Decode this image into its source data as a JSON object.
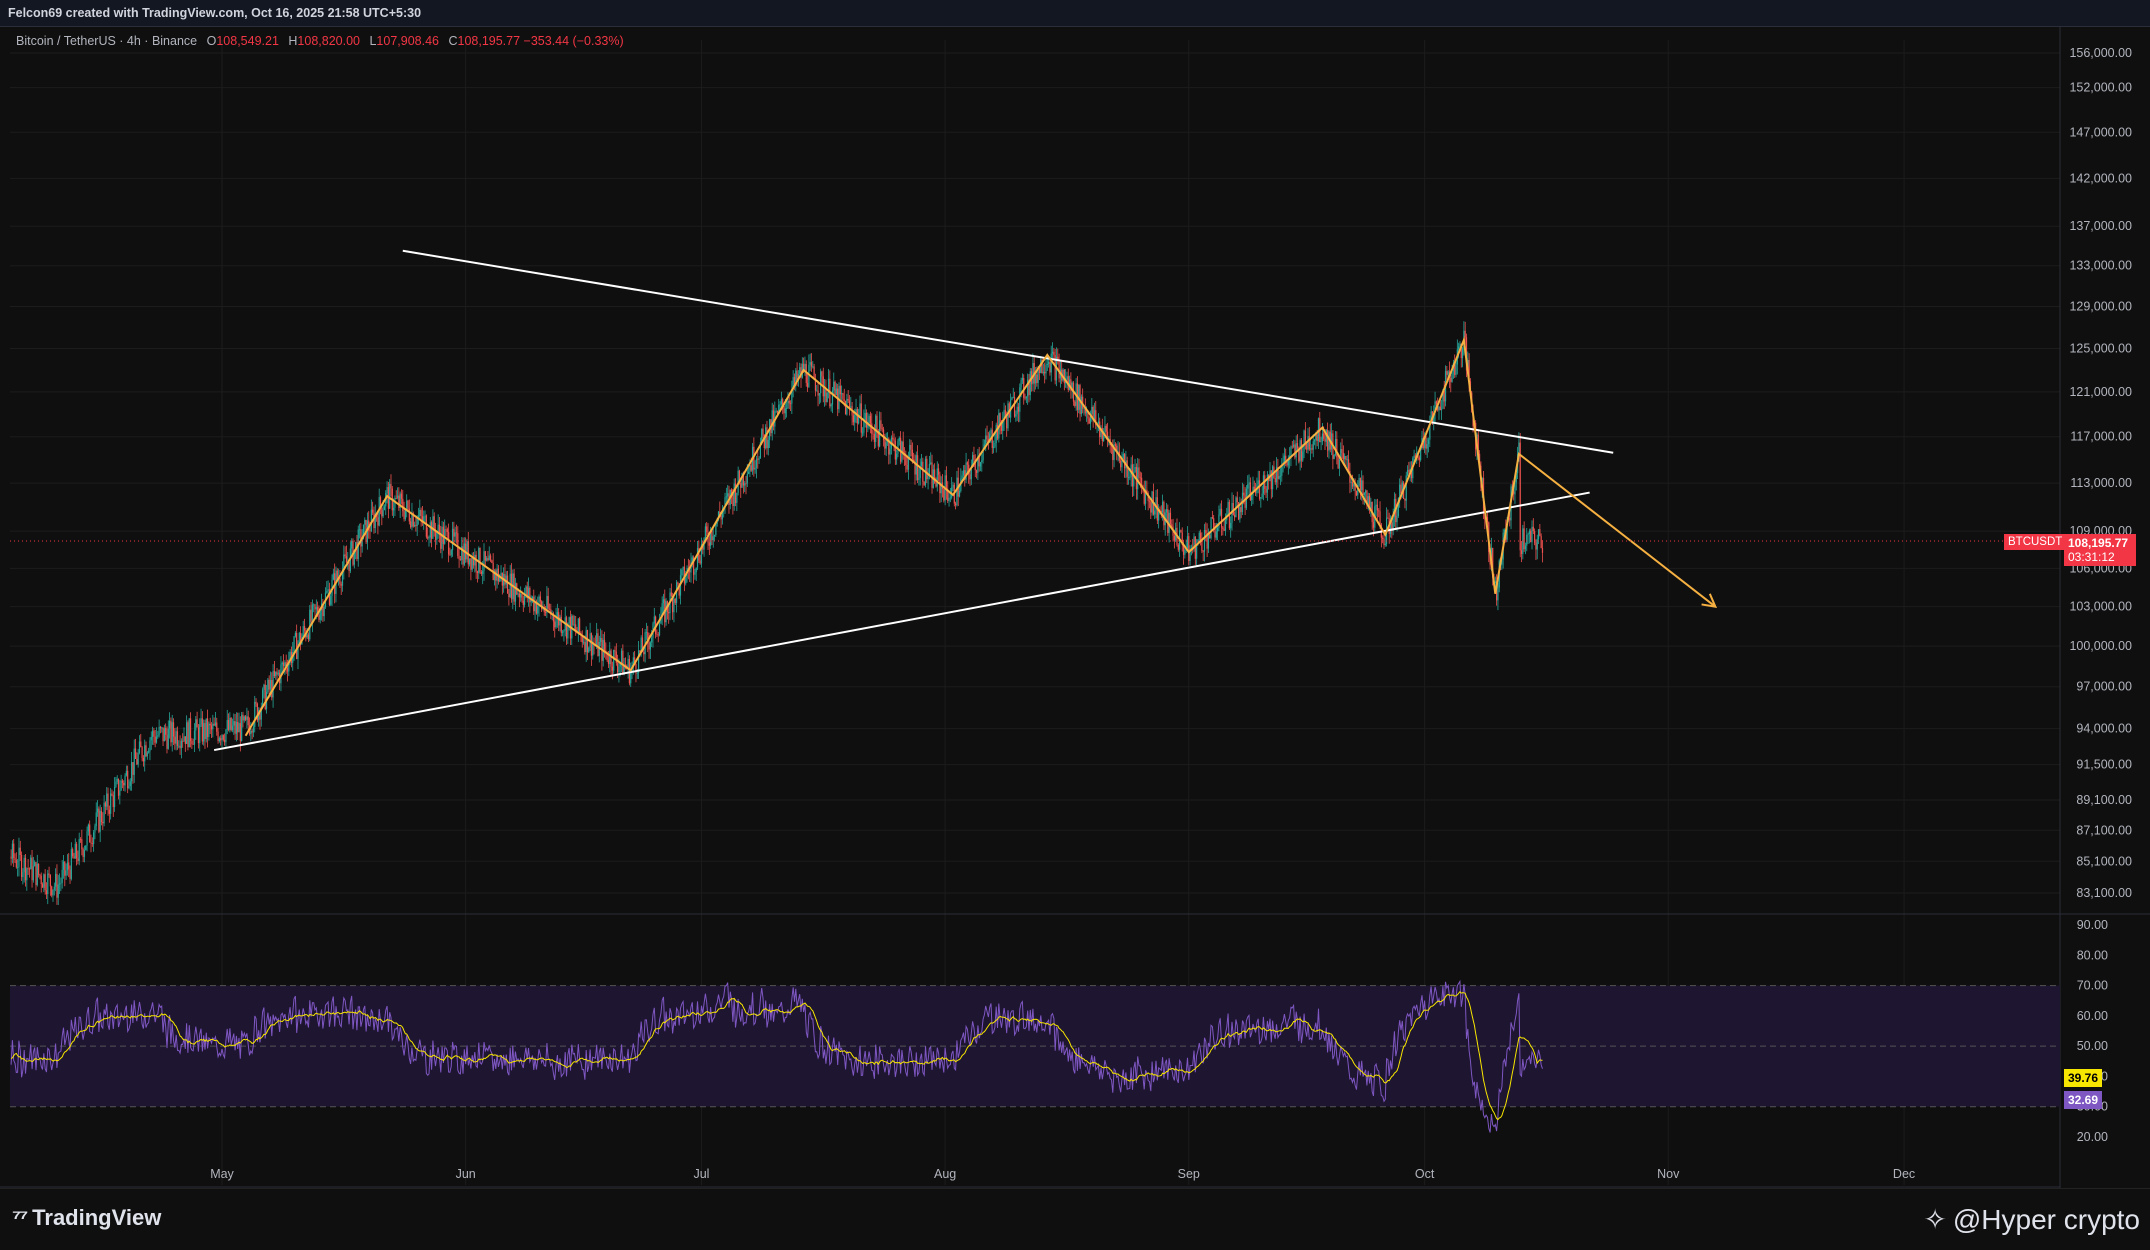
{
  "header": {
    "credit": "Felcon69 created with TradingView.com, Oct 16, 2025 21:58 UTC+5:30"
  },
  "legend": {
    "symbol": "Bitcoin / TetherUS · 4h · Binance",
    "o_label": "O",
    "o_value": "108,549.21",
    "h_label": "H",
    "h_value": "108,820.00",
    "l_label": "L",
    "l_value": "107,908.46",
    "c_label": "C",
    "c_value": "108,195.77",
    "change": "−353.44 (−0.33%)"
  },
  "price_axis": {
    "ticks": [
      "156,000.00",
      "152,000.00",
      "147,000.00",
      "142,000.00",
      "137,000.00",
      "133,000.00",
      "129,000.00",
      "125,000.00",
      "121,000.00",
      "117,000.00",
      "113,000.00",
      "109,000.00",
      "106,000.00",
      "103,000.00",
      "100,000.00",
      "97,000.00",
      "94,000.00",
      "91,500.00",
      "89,100.00",
      "87,100.00",
      "85,100.00",
      "83,100.00"
    ],
    "tick_values": [
      156000,
      152000,
      147000,
      142000,
      137000,
      133000,
      129000,
      125000,
      121000,
      117000,
      113000,
      109000,
      106000,
      103000,
      100000,
      97000,
      94000,
      91500,
      89100,
      87100,
      85100,
      83100
    ]
  },
  "rsi_axis": {
    "ticks": [
      "90.00",
      "80.00",
      "70.00",
      "60.00",
      "50.00",
      "40.00",
      "30.00",
      "20.00"
    ],
    "tick_values": [
      90,
      80,
      70,
      60,
      50,
      40,
      30,
      20
    ],
    "rsi_badge": "32.69",
    "ma_badge": "39.76"
  },
  "time_axis": {
    "labels": [
      "May",
      "Jun",
      "Jul",
      "Aug",
      "Sep",
      "Oct",
      "Nov",
      "Dec"
    ]
  },
  "current_price": {
    "symbol_tag": "BTCUSDT",
    "price": "108,195.77",
    "countdown": "03:31:12",
    "value": 108195.77
  },
  "footer": {
    "brand": "TradingView",
    "watermark": "@Hyper crypto"
  },
  "colors": {
    "background": "#0f0f0f",
    "up": "#26a69a",
    "down": "#ef5350",
    "pattern": "#f5b041",
    "trendline": "#ffffff",
    "rsi": "#7e57c2",
    "rsi_ma": "#f7e600",
    "price_tag": "#f23645"
  },
  "chart_data": [
    {
      "type": "candlestick",
      "timeframe": "4h",
      "time_range": [
        "2025-04-01",
        "2025-10-16"
      ],
      "ylim": [
        82000,
        158000
      ],
      "scale": "log",
      "zigzag_pattern": [
        {
          "date": "2025-05-04",
          "price": 93500
        },
        {
          "date": "2025-05-22",
          "price": 111900
        },
        {
          "date": "2025-06-22",
          "price": 98200
        },
        {
          "date": "2025-07-14",
          "price": 123000
        },
        {
          "date": "2025-08-02",
          "price": 112000
        },
        {
          "date": "2025-08-14",
          "price": 124400
        },
        {
          "date": "2025-09-01",
          "price": 107300
        },
        {
          "date": "2025-09-18",
          "price": 117800
        },
        {
          "date": "2025-09-26",
          "price": 108700
        },
        {
          "date": "2025-10-06",
          "price": 125800
        },
        {
          "date": "2025-10-10",
          "price": 104000
        },
        {
          "date": "2025-10-13",
          "price": 115500
        },
        {
          "date": "2025-11-07",
          "price": 103000
        }
      ],
      "trendlines": [
        {
          "name": "upper",
          "from": {
            "date": "2025-05-24",
            "price": 134500
          },
          "to": {
            "date": "2025-10-25",
            "price": 115600
          }
        },
        {
          "name": "lower",
          "from": {
            "date": "2025-04-30",
            "price": 92500
          },
          "to": {
            "date": "2025-10-22",
            "price": 112200
          }
        }
      ]
    },
    {
      "type": "line",
      "ylim": [
        15,
        95
      ],
      "levels": [
        70,
        50,
        30
      ]
    }
  ]
}
